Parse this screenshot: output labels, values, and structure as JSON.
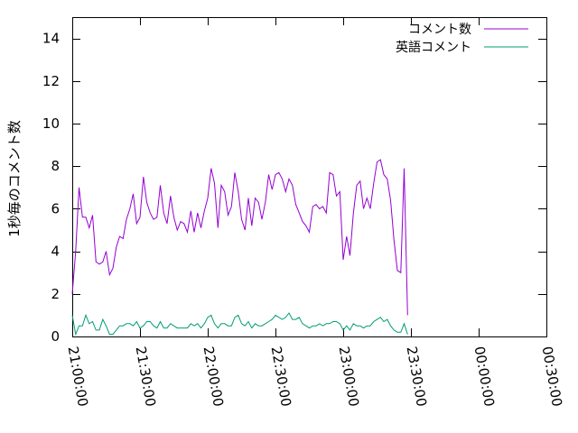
{
  "chart_data": {
    "type": "line",
    "title": "",
    "xlabel": "",
    "ylabel": "1秒毎のコメント数",
    "ylim": [
      0,
      15
    ],
    "y_ticks": [
      0,
      2,
      4,
      6,
      8,
      10,
      12,
      14
    ],
    "xlim": [
      "21:00:00",
      "00:30:00"
    ],
    "x_tick_labels": [
      "21:00:00",
      "21:30:00",
      "22:00:00",
      "22:30:00",
      "23:00:00",
      "23:30:00",
      "00:00:00",
      "00:30:00"
    ],
    "x_unit": "minutes from 21:00:00",
    "legend_position": "top-right",
    "grid": false,
    "series": [
      {
        "name": "コメント数",
        "color": "#9400d3",
        "points": [
          [
            0,
            2.0
          ],
          [
            1.5,
            4.0
          ],
          [
            3,
            7.0
          ],
          [
            4.5,
            5.6
          ],
          [
            6,
            5.6
          ],
          [
            7.5,
            5.1
          ],
          [
            9,
            5.7
          ],
          [
            10.5,
            3.5
          ],
          [
            12,
            3.4
          ],
          [
            13.5,
            3.5
          ],
          [
            15,
            4.0
          ],
          [
            16.5,
            2.9
          ],
          [
            18,
            3.2
          ],
          [
            19.5,
            4.2
          ],
          [
            21,
            4.7
          ],
          [
            22.5,
            4.6
          ],
          [
            24,
            5.5
          ],
          [
            25.5,
            6.0
          ],
          [
            27,
            6.7
          ],
          [
            28.5,
            5.3
          ],
          [
            30,
            5.6
          ],
          [
            31.5,
            7.5
          ],
          [
            33,
            6.3
          ],
          [
            34.5,
            5.8
          ],
          [
            36,
            5.5
          ],
          [
            37.5,
            5.6
          ],
          [
            39,
            7.1
          ],
          [
            40.5,
            5.8
          ],
          [
            42,
            5.3
          ],
          [
            43.5,
            6.6
          ],
          [
            45,
            5.6
          ],
          [
            46.5,
            5.0
          ],
          [
            48,
            5.4
          ],
          [
            49.5,
            5.3
          ],
          [
            51,
            4.9
          ],
          [
            52.5,
            5.9
          ],
          [
            54,
            4.9
          ],
          [
            55.5,
            5.8
          ],
          [
            57,
            5.1
          ],
          [
            58.5,
            5.9
          ],
          [
            60,
            6.5
          ],
          [
            61.5,
            7.9
          ],
          [
            63,
            7.2
          ],
          [
            64.5,
            5.1
          ],
          [
            66,
            7.1
          ],
          [
            67.5,
            6.8
          ],
          [
            69,
            5.7
          ],
          [
            70.5,
            6.1
          ],
          [
            72,
            7.7
          ],
          [
            73.5,
            6.8
          ],
          [
            75,
            5.5
          ],
          [
            76.5,
            5.0
          ],
          [
            78,
            6.5
          ],
          [
            79.5,
            5.2
          ],
          [
            81,
            6.5
          ],
          [
            82.5,
            6.3
          ],
          [
            84,
            5.5
          ],
          [
            85.5,
            6.3
          ],
          [
            87,
            7.6
          ],
          [
            88.5,
            6.9
          ],
          [
            90,
            7.6
          ],
          [
            91.5,
            7.7
          ],
          [
            93,
            7.4
          ],
          [
            94.5,
            6.8
          ],
          [
            96,
            7.4
          ],
          [
            97.5,
            7.1
          ],
          [
            99,
            6.2
          ],
          [
            100.5,
            5.8
          ],
          [
            102,
            5.4
          ],
          [
            103.5,
            5.2
          ],
          [
            105,
            4.9
          ],
          [
            106.5,
            6.1
          ],
          [
            108,
            6.2
          ],
          [
            109.5,
            6.0
          ],
          [
            111,
            6.1
          ],
          [
            112.5,
            5.8
          ],
          [
            114,
            7.7
          ],
          [
            115.5,
            7.6
          ],
          [
            117,
            6.6
          ],
          [
            118.5,
            6.8
          ],
          [
            120,
            3.6
          ],
          [
            121.5,
            4.7
          ],
          [
            123,
            3.8
          ],
          [
            124.5,
            5.8
          ],
          [
            126,
            7.1
          ],
          [
            127.5,
            7.3
          ],
          [
            129,
            6.0
          ],
          [
            130.5,
            6.5
          ],
          [
            132,
            6.0
          ],
          [
            133.5,
            7.2
          ],
          [
            135,
            8.2
          ],
          [
            136.5,
            8.3
          ],
          [
            138,
            7.6
          ],
          [
            139.5,
            7.4
          ],
          [
            141,
            6.4
          ],
          [
            142.5,
            4.5
          ],
          [
            144,
            3.1
          ],
          [
            145.5,
            3.0
          ],
          [
            147,
            7.9
          ],
          [
            148.5,
            1.0
          ]
        ]
      },
      {
        "name": "英語コメント",
        "color": "#009e73",
        "points": [
          [
            0,
            1.0
          ],
          [
            1.5,
            0.1
          ],
          [
            3,
            0.5
          ],
          [
            4.5,
            0.5
          ],
          [
            6,
            1.0
          ],
          [
            7.5,
            0.6
          ],
          [
            9,
            0.7
          ],
          [
            10.5,
            0.3
          ],
          [
            12,
            0.3
          ],
          [
            13.5,
            0.8
          ],
          [
            15,
            0.5
          ],
          [
            16.5,
            0.1
          ],
          [
            18,
            0.1
          ],
          [
            19.5,
            0.3
          ],
          [
            21,
            0.5
          ],
          [
            22.5,
            0.5
          ],
          [
            24,
            0.6
          ],
          [
            25.5,
            0.6
          ],
          [
            27,
            0.5
          ],
          [
            28.5,
            0.7
          ],
          [
            30,
            0.4
          ],
          [
            31.5,
            0.5
          ],
          [
            33,
            0.7
          ],
          [
            34.5,
            0.7
          ],
          [
            36,
            0.5
          ],
          [
            37.5,
            0.4
          ],
          [
            39,
            0.7
          ],
          [
            40.5,
            0.4
          ],
          [
            42,
            0.4
          ],
          [
            43.5,
            0.6
          ],
          [
            45,
            0.5
          ],
          [
            46.5,
            0.4
          ],
          [
            48,
            0.4
          ],
          [
            49.5,
            0.4
          ],
          [
            51,
            0.4
          ],
          [
            52.5,
            0.6
          ],
          [
            54,
            0.5
          ],
          [
            55.5,
            0.6
          ],
          [
            57,
            0.4
          ],
          [
            58.5,
            0.6
          ],
          [
            60,
            0.9
          ],
          [
            61.5,
            1.0
          ],
          [
            63,
            0.6
          ],
          [
            64.5,
            0.4
          ],
          [
            66,
            0.6
          ],
          [
            67.5,
            0.6
          ],
          [
            69,
            0.5
          ],
          [
            70.5,
            0.5
          ],
          [
            72,
            0.9
          ],
          [
            73.5,
            1.0
          ],
          [
            75,
            0.6
          ],
          [
            76.5,
            0.5
          ],
          [
            78,
            0.7
          ],
          [
            79.5,
            0.4
          ],
          [
            81,
            0.6
          ],
          [
            82.5,
            0.5
          ],
          [
            84,
            0.5
          ],
          [
            85.5,
            0.6
          ],
          [
            87,
            0.7
          ],
          [
            88.5,
            0.8
          ],
          [
            90,
            1.0
          ],
          [
            91.5,
            0.9
          ],
          [
            93,
            0.8
          ],
          [
            94.5,
            0.9
          ],
          [
            96,
            1.1
          ],
          [
            97.5,
            0.8
          ],
          [
            99,
            0.8
          ],
          [
            100.5,
            0.9
          ],
          [
            102,
            0.6
          ],
          [
            103.5,
            0.5
          ],
          [
            105,
            0.4
          ],
          [
            106.5,
            0.5
          ],
          [
            108,
            0.5
          ],
          [
            109.5,
            0.6
          ],
          [
            111,
            0.5
          ],
          [
            112.5,
            0.6
          ],
          [
            114,
            0.6
          ],
          [
            115.5,
            0.7
          ],
          [
            117,
            0.7
          ],
          [
            118.5,
            0.6
          ],
          [
            120,
            0.3
          ],
          [
            121.5,
            0.5
          ],
          [
            123,
            0.3
          ],
          [
            124.5,
            0.6
          ],
          [
            126,
            0.5
          ],
          [
            127.5,
            0.5
          ],
          [
            129,
            0.4
          ],
          [
            130.5,
            0.5
          ],
          [
            132,
            0.5
          ],
          [
            133.5,
            0.7
          ],
          [
            135,
            0.8
          ],
          [
            136.5,
            0.9
          ],
          [
            138,
            0.7
          ],
          [
            139.5,
            0.8
          ],
          [
            141,
            0.5
          ],
          [
            142.5,
            0.3
          ],
          [
            144,
            0.2
          ],
          [
            145.5,
            0.2
          ],
          [
            147,
            0.6
          ],
          [
            148.5,
            0.1
          ]
        ]
      }
    ]
  }
}
